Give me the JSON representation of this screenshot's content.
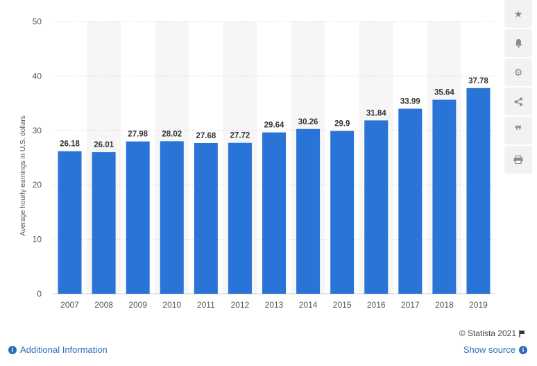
{
  "chart_data": {
    "type": "bar",
    "title": "",
    "xlabel": "",
    "ylabel": "Average hourly earnings in U.S. dollars",
    "categories": [
      "2007",
      "2008",
      "2009",
      "2010",
      "2011",
      "2012",
      "2013",
      "2014",
      "2015",
      "2016",
      "2017",
      "2018",
      "2019"
    ],
    "values": [
      26.18,
      26.01,
      27.98,
      28.02,
      27.68,
      27.72,
      29.64,
      30.26,
      29.9,
      31.84,
      33.99,
      35.64,
      37.78
    ],
    "value_labels": [
      "26.18",
      "26.01",
      "27.98",
      "28.02",
      "27.68",
      "27.72",
      "29.64",
      "30.26",
      "29.9",
      "31.84",
      "33.99",
      "35.64",
      "37.78"
    ],
    "ylim": [
      0,
      50
    ],
    "yticks": [
      "0",
      "10",
      "20",
      "30",
      "40",
      "50"
    ],
    "grid": true,
    "bar_color": "#2a74d8",
    "alt_band_color": "#f6f6f6"
  },
  "toolbar": {
    "icons": [
      "star-icon",
      "bell-icon",
      "gear-icon",
      "share-icon",
      "quote-icon",
      "print-icon"
    ]
  },
  "footer": {
    "copyright": "© Statista 2021",
    "additional_info": "Additional Information",
    "show_source": "Show source"
  }
}
